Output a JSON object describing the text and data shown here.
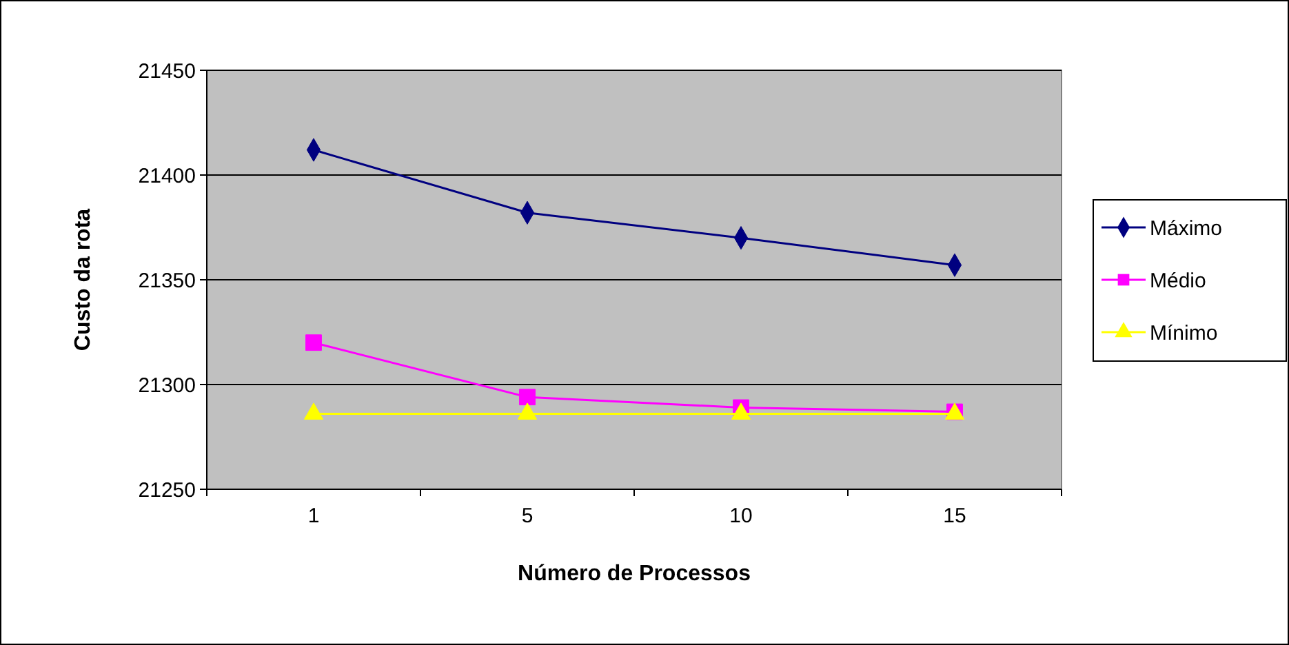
{
  "chart_data": {
    "type": "line",
    "xlabel": "Número de Processos",
    "ylabel": "Custo da rota",
    "categories": [
      "1",
      "5",
      "10",
      "15"
    ],
    "ylim": [
      21250,
      21450
    ],
    "yticks": [
      21250,
      21300,
      21350,
      21400,
      21450
    ],
    "grid": "y",
    "legend": "right",
    "series": [
      {
        "name": "Máximo",
        "color": "#000080",
        "marker": "diamond",
        "values": [
          21412,
          21382,
          21370,
          21357
        ]
      },
      {
        "name": "Médio",
        "color": "#ff00ff",
        "marker": "square",
        "values": [
          21320,
          21294,
          21289,
          21287
        ]
      },
      {
        "name": "Mínimo",
        "color": "#ffff00",
        "marker": "triangle",
        "values": [
          21286,
          21286,
          21286,
          21286
        ]
      }
    ]
  }
}
